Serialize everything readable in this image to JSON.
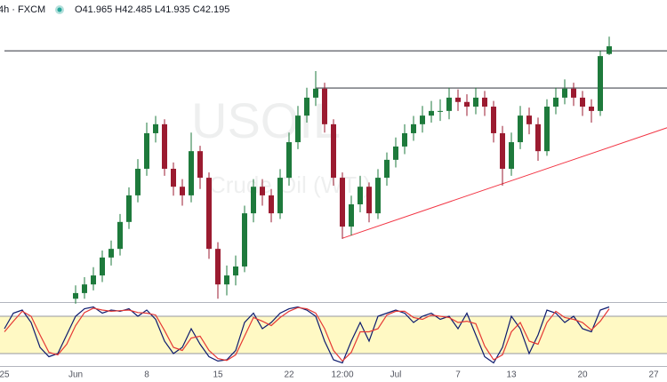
{
  "chart_data": {
    "type": "candlestick",
    "header": {
      "symbol": "4h · FXCM",
      "open_label": "O",
      "high_label": "H",
      "low_label": "L",
      "close_label": "C"
    },
    "watermark": [
      "USOIL",
      "Crude Oil (WTI)"
    ],
    "categories": [
      "25",
      null,
      null,
      null,
      null,
      null,
      null,
      null,
      "Jun",
      null,
      null,
      null,
      null,
      null,
      null,
      null,
      "8",
      null,
      null,
      null,
      null,
      null,
      null,
      null,
      "15",
      null,
      null,
      null,
      null,
      null,
      null,
      null,
      "22",
      null,
      null,
      null,
      null,
      null,
      "12:00",
      null,
      null,
      null,
      null,
      null,
      "Jul",
      null,
      null,
      null,
      null,
      null,
      null,
      "7",
      null,
      null,
      null,
      null,
      null,
      "13",
      null,
      null,
      null,
      null,
      null,
      null,
      null,
      "20",
      null,
      null,
      null,
      null,
      null,
      null,
      null,
      "27",
      null
    ],
    "open": [
      null,
      null,
      null,
      null,
      null,
      null,
      null,
      null,
      34.6,
      34.77,
      35.03,
      35.3,
      35.84,
      36.1,
      36.91,
      37.71,
      38.51,
      39.58,
      39.85,
      38.51,
      37.97,
      37.71,
      39.04,
      38.24,
      36.1,
      35.03,
      35.3,
      35.57,
      37.17,
      37.97,
      37.71,
      37.17,
      38.24,
      39.31,
      40.11,
      40.65,
      40.92,
      39.85,
      38.24,
      36.77,
      37.44,
      37.97,
      37.17,
      38.24,
      38.78,
      39.18,
      39.58,
      39.85,
      40.11,
      40.25,
      40.25,
      40.65,
      40.52,
      40.38,
      40.65,
      40.38,
      39.58,
      38.51,
      39.31,
      40.11,
      39.85,
      39.04,
      40.38,
      40.65,
      40.92,
      40.65,
      40.38,
      40.25,
      41.965,
      null,
      null,
      null,
      null,
      null,
      null
    ],
    "high": [
      null,
      null,
      null,
      null,
      null,
      null,
      null,
      null,
      35.0,
      35.25,
      35.55,
      36.05,
      36.35,
      37.15,
      37.95,
      38.8,
      39.9,
      40.1,
      40.0,
      38.7,
      38.2,
      39.6,
      39.2,
      38.4,
      36.3,
      35.6,
      35.9,
      37.4,
      38.2,
      38.2,
      37.9,
      38.5,
      39.6,
      40.4,
      40.95,
      41.45,
      41.1,
      40.0,
      38.4,
      37.7,
      38.3,
      38.1,
      38.5,
      39.0,
      39.45,
      39.85,
      40.1,
      40.4,
      40.55,
      40.6,
      40.95,
      40.9,
      40.75,
      40.95,
      40.85,
      40.55,
      39.8,
      39.6,
      40.4,
      40.35,
      40.05,
      40.6,
      40.95,
      41.2,
      41.1,
      40.85,
      40.6,
      42.05,
      42.485,
      null,
      null,
      null,
      null,
      null,
      null
    ],
    "low": [
      null,
      null,
      null,
      null,
      null,
      null,
      null,
      null,
      34.45,
      34.6,
      34.85,
      35.1,
      35.6,
      35.9,
      36.7,
      37.5,
      38.3,
      39.3,
      38.3,
      37.7,
      37.4,
      37.5,
      37.9,
      35.8,
      34.6,
      34.7,
      35.0,
      35.4,
      36.9,
      37.4,
      36.9,
      37.0,
      38.0,
      39.1,
      39.9,
      40.4,
      39.6,
      38.0,
      36.4,
      36.5,
      37.2,
      36.9,
      37.0,
      38.0,
      38.55,
      38.95,
      39.35,
      39.6,
      39.9,
      39.95,
      40.0,
      40.25,
      40.1,
      40.15,
      40.1,
      39.3,
      38.0,
      38.3,
      39.1,
      39.55,
      38.75,
      38.9,
      40.15,
      40.45,
      40.4,
      40.1,
      39.9,
      40.1,
      41.935,
      null,
      null,
      null,
      null,
      null,
      null
    ],
    "close": [
      null,
      null,
      null,
      null,
      null,
      null,
      null,
      null,
      34.77,
      35.03,
      35.3,
      35.84,
      36.1,
      36.91,
      37.71,
      38.51,
      39.58,
      39.85,
      38.51,
      37.97,
      37.71,
      39.04,
      38.24,
      36.1,
      35.03,
      35.3,
      35.57,
      37.17,
      37.97,
      37.71,
      37.17,
      38.24,
      39.31,
      40.11,
      40.65,
      40.92,
      39.85,
      38.24,
      36.77,
      37.44,
      37.97,
      37.17,
      38.24,
      38.78,
      39.18,
      39.58,
      39.85,
      40.11,
      40.25,
      40.25,
      40.65,
      40.52,
      40.38,
      40.65,
      40.38,
      39.58,
      38.51,
      39.31,
      40.11,
      39.85,
      39.04,
      40.38,
      40.65,
      40.92,
      40.65,
      40.38,
      40.25,
      41.9,
      42.195,
      null,
      null,
      null,
      null,
      null,
      null
    ],
    "up_color": "#1e7a3c",
    "down_color": "#9b1b30",
    "ylim": [
      34.5,
      43
    ],
    "levels": [
      {
        "value": 42.06,
        "from": 0
      },
      {
        "value": 40.94,
        "from": 35
      }
    ],
    "level_color": "#131722",
    "trendline": {
      "x": [
        38,
        75
      ],
      "values": [
        36.42,
        39.79
      ],
      "color": "#f23645"
    },
    "oscillator": {
      "type": "line",
      "ylim": [
        0,
        100
      ],
      "band": [
        20,
        80
      ],
      "band_color": "#fff9c4",
      "series": [
        {
          "color": "#0d1b6e",
          "values": [
            60,
            85,
            90,
            70,
            30,
            15,
            20,
            50,
            80,
            92,
            95,
            85,
            90,
            88,
            92,
            80,
            90,
            75,
            40,
            20,
            30,
            60,
            35,
            15,
            8,
            10,
            25,
            70,
            85,
            60,
            70,
            85,
            92,
            95,
            90,
            80,
            40,
            10,
            5,
            40,
            70,
            40,
            80,
            85,
            90,
            85,
            70,
            80,
            85,
            75,
            80,
            60,
            85,
            50,
            15,
            5,
            30,
            80,
            60,
            20,
            50,
            90,
            85,
            70,
            80,
            60,
            55,
            90,
            95,
            null,
            null,
            null,
            null,
            null,
            null
          ]
        },
        {
          "color": "#e53935",
          "values": [
            55,
            72,
            88,
            80,
            50,
            22,
            18,
            35,
            65,
            86,
            93,
            90,
            88,
            89,
            90,
            86,
            85,
            82,
            57,
            30,
            25,
            45,
            48,
            25,
            12,
            9,
            18,
            48,
            78,
            72,
            65,
            78,
            88,
            94,
            92,
            85,
            60,
            25,
            8,
            22,
            55,
            55,
            60,
            82,
            88,
            88,
            78,
            75,
            82,
            80,
            78,
            70,
            72,
            68,
            32,
            10,
            18,
            55,
            70,
            40,
            35,
            70,
            88,
            78,
            75,
            70,
            58,
            72,
            92,
            null,
            null,
            null,
            null,
            null,
            null
          ]
        }
      ]
    }
  }
}
